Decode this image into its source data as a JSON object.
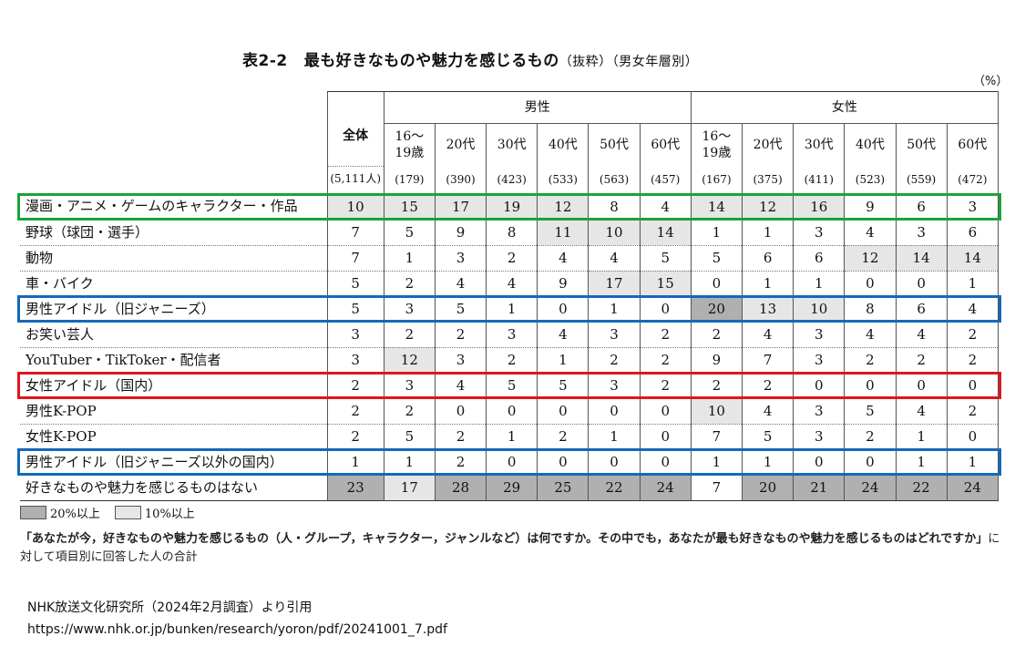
{
  "header": {
    "table_no": "表2-2",
    "title": "最も好きなものや魅力を感じるもの",
    "subtitle": "（抜粋）（男女年層別）",
    "unit": "（%）"
  },
  "columns": {
    "total_label": "全体",
    "total_n": "(5,111人)",
    "male_label": "男性",
    "female_label": "女性",
    "ages": [
      "16〜\n19歳",
      "20代",
      "30代",
      "40代",
      "50代",
      "60代"
    ],
    "male_n": [
      "(179)",
      "(390)",
      "(423)",
      "(533)",
      "(563)",
      "(457)"
    ],
    "female_n": [
      "(167)",
      "(375)",
      "(411)",
      "(523)",
      "(559)",
      "(472)"
    ]
  },
  "rows": [
    {
      "label": "漫画・アニメ・ゲームのキャラクター・作品",
      "values": [
        "10",
        "15",
        "17",
        "19",
        "12",
        "8",
        "4",
        "14",
        "12",
        "16",
        "9",
        "6",
        "3"
      ]
    },
    {
      "label": "野球（球団・選手）",
      "values": [
        "7",
        "5",
        "9",
        "8",
        "11",
        "10",
        "14",
        "1",
        "1",
        "3",
        "4",
        "3",
        "6"
      ]
    },
    {
      "label": "動物",
      "values": [
        "7",
        "1",
        "3",
        "2",
        "4",
        "4",
        "5",
        "5",
        "6",
        "6",
        "12",
        "14",
        "14"
      ]
    },
    {
      "label": "車・バイク",
      "values": [
        "5",
        "2",
        "4",
        "4",
        "9",
        "17",
        "15",
        "0",
        "1",
        "1",
        "0",
        "0",
        "1"
      ]
    },
    {
      "label": "男性アイドル（旧ジャニーズ）",
      "values": [
        "5",
        "3",
        "5",
        "1",
        "0",
        "1",
        "0",
        "20",
        "13",
        "10",
        "8",
        "6",
        "4"
      ]
    },
    {
      "label": "お笑い芸人",
      "values": [
        "3",
        "2",
        "2",
        "3",
        "4",
        "3",
        "2",
        "2",
        "4",
        "3",
        "4",
        "4",
        "2"
      ]
    },
    {
      "label": "YouTuber・TikToker・配信者",
      "values": [
        "3",
        "12",
        "3",
        "2",
        "1",
        "2",
        "2",
        "9",
        "7",
        "3",
        "2",
        "2",
        "2"
      ]
    },
    {
      "label": "女性アイドル（国内）",
      "values": [
        "2",
        "3",
        "4",
        "5",
        "5",
        "3",
        "2",
        "2",
        "2",
        "0",
        "0",
        "0",
        "0"
      ]
    },
    {
      "label": "男性K-POP",
      "values": [
        "2",
        "2",
        "0",
        "0",
        "0",
        "0",
        "0",
        "10",
        "4",
        "3",
        "5",
        "4",
        "2"
      ]
    },
    {
      "label": "女性K-POP",
      "values": [
        "2",
        "5",
        "2",
        "1",
        "2",
        "1",
        "0",
        "7",
        "5",
        "3",
        "2",
        "1",
        "0"
      ]
    },
    {
      "label": "男性アイドル（旧ジャニーズ以外の国内）",
      "values": [
        "1",
        "1",
        "2",
        "0",
        "0",
        "0",
        "0",
        "1",
        "1",
        "0",
        "0",
        "1",
        "1"
      ]
    },
    {
      "label": "好きなものや魅力を感じるものはない",
      "values": [
        "23",
        "17",
        "28",
        "29",
        "25",
        "22",
        "24",
        "7",
        "20",
        "21",
        "24",
        "22",
        "24"
      ]
    }
  ],
  "legend": {
    "over20": "20%以上",
    "over10": "10%以上"
  },
  "note": {
    "question": "「あなたが今，好きなものや魅力を感じるもの（人・グループ，キャラクター，ジャンルなど）は何ですか。その中でも，あなたが最も好きなものや魅力を感じるものはどれですか」",
    "rest": "に対して項目別に回答した人の合計"
  },
  "source": {
    "line1": "NHK放送文化研究所（2024年2月調査）より引用",
    "line2": "https://www.nhk.or.jp/bunken/research/yoron/pdf/20241001_7.pdf"
  },
  "highlight_colors": {
    "green": "#1aa33a",
    "blue": "#1469b8",
    "red": "#e0161c"
  }
}
